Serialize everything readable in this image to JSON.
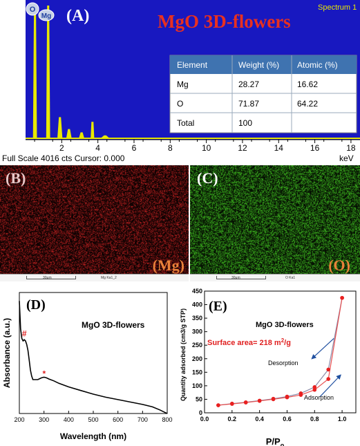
{
  "panel_a": {
    "letter": "(A)",
    "title": "MgO 3D-flowers",
    "spectrum_label": "Spectrum 1",
    "peak_badges": [
      "O",
      "Mg"
    ],
    "footer": "Full Scale 4016 cts Cursor: 0.000",
    "x_unit": "keV",
    "table": {
      "headers": [
        "Element",
        "Weight (%)",
        "Atomic (%)"
      ],
      "rows": [
        [
          "Mg",
          "28.27",
          "16.62"
        ],
        [
          "O",
          "71.87",
          "64.22"
        ],
        [
          "Total",
          "100",
          ""
        ]
      ]
    },
    "colors": {
      "background": "#1818c0",
      "spectrum": "#e8e800",
      "title": "#e83020"
    }
  },
  "panel_b": {
    "letter": "(B)",
    "element_label": "(Mg)",
    "scale_label": "30μm",
    "map_label": "Mg Ka1_2",
    "color": "#c02020"
  },
  "panel_c": {
    "letter": "(C)",
    "element_label": "(O)",
    "scale_label": "30μm",
    "map_label": "O Ka1",
    "color": "#40c020"
  },
  "panel_d": {
    "letter": "(D)",
    "legend_label": "MgO 3D-flowers",
    "marker_hash": "#",
    "marker_star": "*"
  },
  "panel_e": {
    "letter": "(E)",
    "legend_label": "MgO 3D-flowers",
    "surface_area_prefix": "Surface area= 218 m",
    "surface_area_exp": "2",
    "surface_area_suffix": "/g",
    "desorption_label": "Desorption",
    "adsorption_label": "Adsorption",
    "xlabel_base": "P/P",
    "xlabel_sub": "o"
  },
  "chart_data": [
    {
      "type": "bar",
      "title": "MgO 3D-flowers",
      "xlabel": "keV",
      "xlim": [
        0,
        18.5
      ],
      "ylim": [
        0,
        4016
      ],
      "x_ticks": [
        2,
        4,
        6,
        8,
        10,
        12,
        14,
        16,
        18
      ],
      "peaks": [
        {
          "x": 0.52,
          "y": 3900,
          "width": 0.22
        },
        {
          "x": 1.25,
          "y": 4016,
          "width": 0.22
        },
        {
          "x": 1.9,
          "y": 640,
          "width": 0.28
        },
        {
          "x": 2.4,
          "y": 280,
          "width": 0.3
        },
        {
          "x": 3.1,
          "y": 180,
          "width": 0.3
        },
        {
          "x": 3.7,
          "y": 500,
          "width": 0.2
        },
        {
          "x": 4.4,
          "y": 90,
          "width": 0.5
        }
      ]
    },
    {
      "type": "line",
      "xlabel": "Wavelength (nm)",
      "ylabel": "Absorbance (a.u.)",
      "xlim": [
        200,
        800
      ],
      "ylim": [
        0,
        1
      ],
      "x_ticks": [
        200,
        300,
        400,
        500,
        600,
        700,
        800
      ],
      "series": [
        {
          "x": [
            200,
            205,
            210,
            215,
            220,
            225,
            230,
            235,
            240,
            245,
            250,
            255,
            260,
            265,
            270,
            275,
            280,
            290,
            300,
            310,
            320,
            340,
            360,
            400,
            450,
            500,
            550,
            600,
            650,
            700,
            740,
            770,
            790,
            800
          ],
          "y": [
            0.93,
            0.7,
            0.62,
            0.6,
            0.61,
            0.6,
            0.57,
            0.52,
            0.44,
            0.36,
            0.31,
            0.28,
            0.28,
            0.28,
            0.28,
            0.28,
            0.285,
            0.295,
            0.3,
            0.295,
            0.285,
            0.27,
            0.25,
            0.22,
            0.19,
            0.16,
            0.135,
            0.115,
            0.095,
            0.075,
            0.055,
            0.03,
            0.01,
            0.0
          ]
        }
      ],
      "annotations": [
        {
          "text": "#",
          "x": 222,
          "y": 0.66
        },
        {
          "text": "*",
          "x": 305,
          "y": 0.33
        }
      ]
    },
    {
      "type": "line",
      "xlabel": "P/Po",
      "ylabel": "Quantity adsorbed (cm3/g STP)",
      "xlim": [
        0,
        1.1
      ],
      "ylim": [
        0,
        450
      ],
      "x_ticks": [
        0.0,
        0.2,
        0.4,
        0.6,
        0.8,
        1.0
      ],
      "y_ticks": [
        0,
        50,
        100,
        150,
        200,
        250,
        300,
        350,
        400,
        450
      ],
      "series": [
        {
          "name": "Adsorption",
          "x": [
            0.1,
            0.2,
            0.3,
            0.4,
            0.5,
            0.6,
            0.7,
            0.8,
            0.9,
            1.0
          ],
          "y": [
            28,
            33,
            38,
            44,
            50,
            57,
            66,
            85,
            125,
            425
          ]
        },
        {
          "name": "Desorption",
          "x": [
            1.0,
            0.9,
            0.8,
            0.7,
            0.6,
            0.5,
            0.4,
            0.3,
            0.2,
            0.1
          ],
          "y": [
            425,
            160,
            95,
            72,
            60,
            52,
            45,
            39,
            34,
            28
          ]
        }
      ]
    }
  ]
}
